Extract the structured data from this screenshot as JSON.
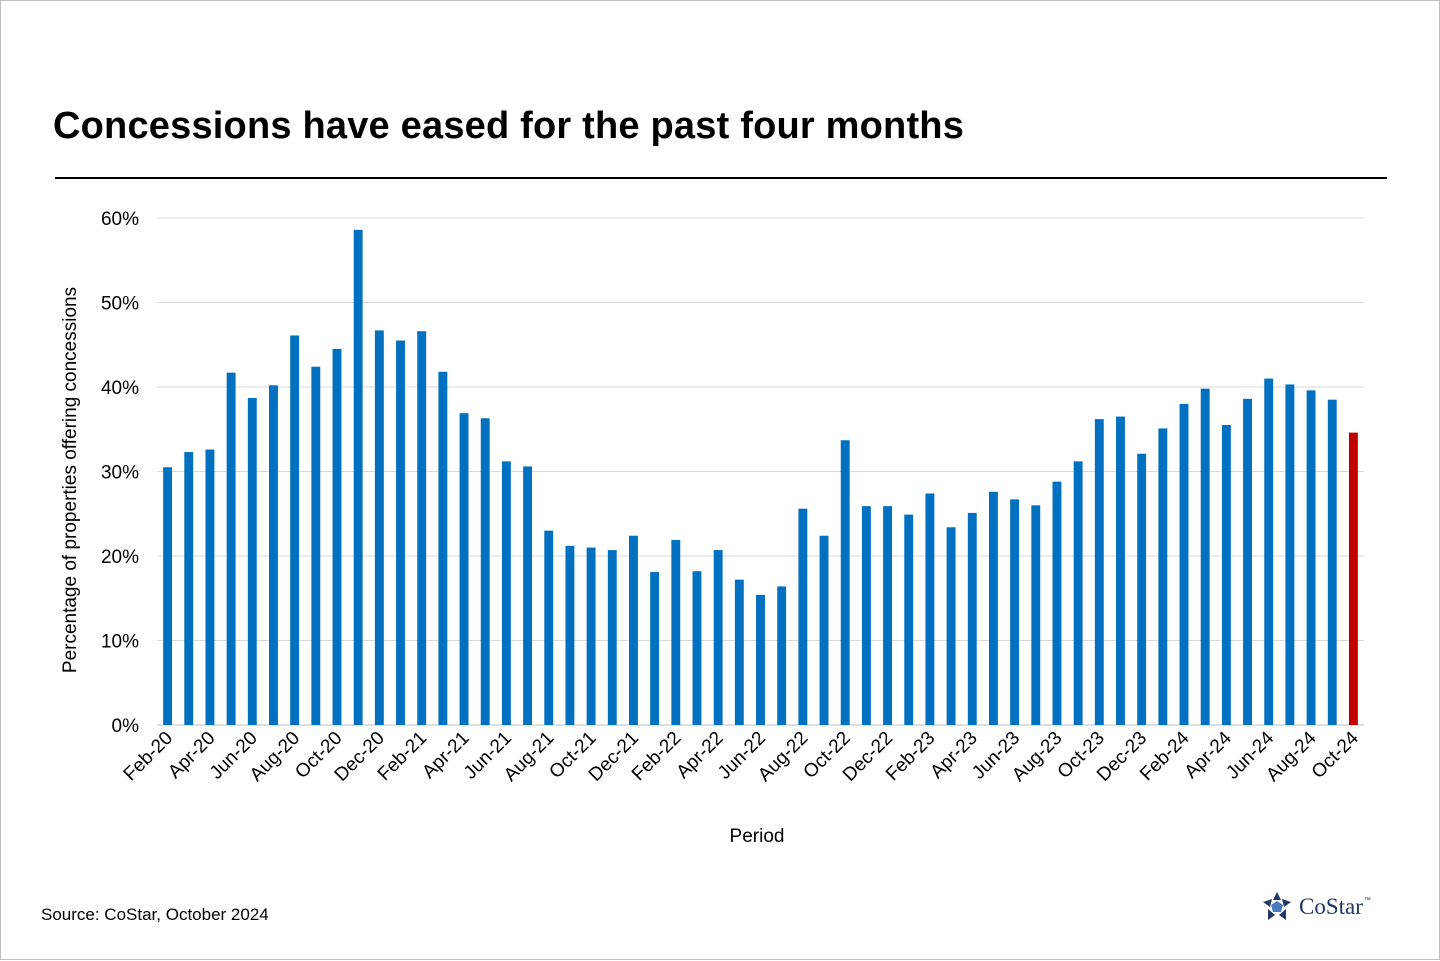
{
  "chart_data": {
    "type": "bar",
    "title": "Concessions have eased for the past four months",
    "xlabel": "Period",
    "ylabel": "Percentage of properties offering concessions",
    "ylim": [
      0,
      60
    ],
    "y_ticks": [
      "0%",
      "10%",
      "20%",
      "30%",
      "40%",
      "50%",
      "60%"
    ],
    "grid": true,
    "legend": "none",
    "colors": {
      "bar": "#0070C0",
      "highlight": "#C00000",
      "grid": "#d9d9d9"
    },
    "highlight_last": true,
    "categories": [
      "Feb-20",
      "Mar-20",
      "Apr-20",
      "May-20",
      "Jun-20",
      "Jul-20",
      "Aug-20",
      "Sep-20",
      "Oct-20",
      "Nov-20",
      "Dec-20",
      "Jan-21",
      "Feb-21",
      "Mar-21",
      "Apr-21",
      "May-21",
      "Jun-21",
      "Jul-21",
      "Aug-21",
      "Sep-21",
      "Oct-21",
      "Nov-21",
      "Dec-21",
      "Jan-22",
      "Feb-22",
      "Mar-22",
      "Apr-22",
      "May-22",
      "Jun-22",
      "Jul-22",
      "Aug-22",
      "Sep-22",
      "Oct-22",
      "Nov-22",
      "Dec-22",
      "Jan-23",
      "Feb-23",
      "Mar-23",
      "Apr-23",
      "May-23",
      "Jun-23",
      "Jul-23",
      "Aug-23",
      "Sep-23",
      "Oct-23",
      "Nov-23",
      "Dec-23",
      "Jan-24",
      "Feb-24",
      "Mar-24",
      "Apr-24",
      "May-24",
      "Jun-24",
      "Jul-24",
      "Aug-24",
      "Sep-24",
      "Oct-24"
    ],
    "tick_labels": [
      "Feb-20",
      "Apr-20",
      "Jun-20",
      "Aug-20",
      "Oct-20",
      "Dec-20",
      "Feb-21",
      "Apr-21",
      "Jun-21",
      "Aug-21",
      "Oct-21",
      "Dec-21",
      "Feb-22",
      "Apr-22",
      "Jun-22",
      "Aug-22",
      "Oct-22",
      "Dec-22",
      "Feb-23",
      "Apr-23",
      "Jun-23",
      "Aug-23",
      "Oct-23",
      "Dec-23",
      "Feb-24",
      "Apr-24",
      "Jun-24",
      "Aug-24",
      "Oct-24"
    ],
    "values": [
      30.5,
      32.3,
      32.6,
      41.7,
      38.7,
      40.2,
      46.1,
      42.4,
      44.5,
      58.6,
      46.7,
      45.5,
      46.6,
      41.8,
      36.9,
      36.3,
      31.2,
      30.6,
      23.0,
      21.2,
      21.0,
      20.7,
      22.4,
      18.1,
      21.9,
      18.2,
      20.7,
      17.2,
      15.4,
      16.4,
      25.6,
      22.4,
      33.7,
      25.9,
      25.9,
      24.9,
      27.4,
      23.4,
      25.1,
      27.6,
      26.7,
      26.0,
      28.8,
      31.2,
      36.2,
      36.5,
      32.1,
      35.1,
      38.0,
      39.8,
      35.5,
      38.6,
      41.0,
      40.3,
      39.6,
      38.5,
      34.6
    ]
  },
  "footer": {
    "source": "Source: CoStar, October 2024",
    "logo_text": "CoStar",
    "logo_tm": "™",
    "logo_icon": "costar-star-icon"
  }
}
